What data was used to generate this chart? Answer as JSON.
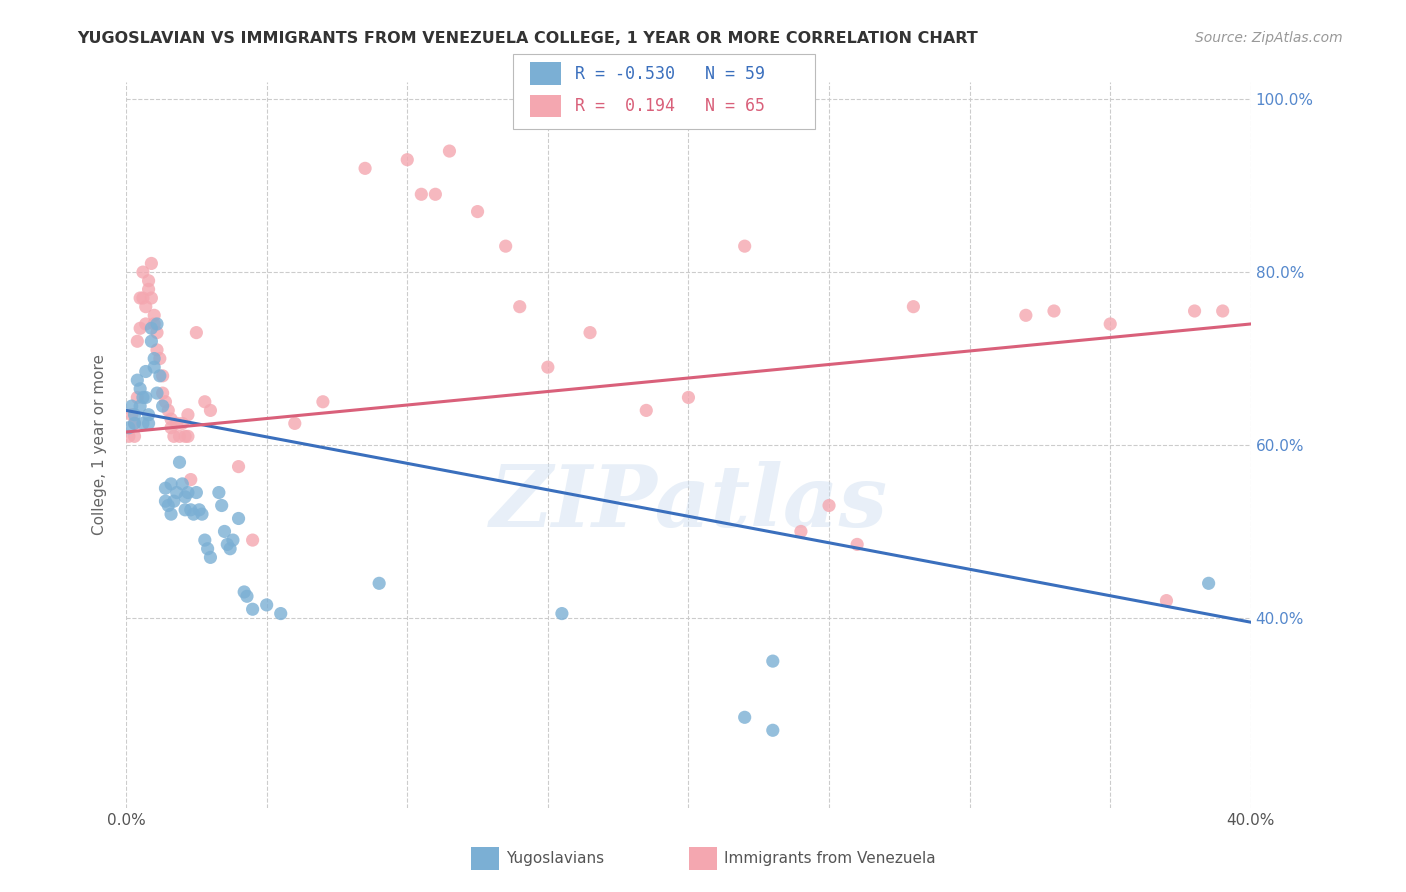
{
  "title": "YUGOSLAVIAN VS IMMIGRANTS FROM VENEZUELA COLLEGE, 1 YEAR OR MORE CORRELATION CHART",
  "source": "Source: ZipAtlas.com",
  "ylabel": "College, 1 year or more",
  "xlim": [
    0.0,
    0.4
  ],
  "ylim": [
    0.18,
    1.02
  ],
  "x_tick_vals": [
    0.0,
    0.05,
    0.1,
    0.15,
    0.2,
    0.25,
    0.3,
    0.35,
    0.4
  ],
  "x_tick_labels": [
    "0.0%",
    "",
    "",
    "",
    "",
    "",
    "",
    "",
    "40.0%"
  ],
  "y_tick_vals": [
    0.4,
    0.6,
    0.8,
    1.0
  ],
  "y_tick_labels": [
    "40.0%",
    "60.0%",
    "80.0%",
    "100.0%"
  ],
  "grid_color": "#cccccc",
  "background_color": "#ffffff",
  "legend_R_blue": "-0.530",
  "legend_N_blue": "59",
  "legend_R_pink": " 0.194",
  "legend_N_pink": "65",
  "blue_color": "#7bafd4",
  "pink_color": "#f4a7b0",
  "blue_line_color": "#3a6fbd",
  "pink_line_color": "#d9607a",
  "watermark_text": "ZIPatlas",
  "blue_points": [
    [
      0.001,
      0.62
    ],
    [
      0.002,
      0.645
    ],
    [
      0.003,
      0.635
    ],
    [
      0.003,
      0.625
    ],
    [
      0.004,
      0.675
    ],
    [
      0.005,
      0.665
    ],
    [
      0.005,
      0.645
    ],
    [
      0.006,
      0.655
    ],
    [
      0.006,
      0.625
    ],
    [
      0.007,
      0.685
    ],
    [
      0.007,
      0.655
    ],
    [
      0.008,
      0.635
    ],
    [
      0.008,
      0.625
    ],
    [
      0.009,
      0.735
    ],
    [
      0.009,
      0.72
    ],
    [
      0.01,
      0.7
    ],
    [
      0.01,
      0.69
    ],
    [
      0.011,
      0.74
    ],
    [
      0.011,
      0.66
    ],
    [
      0.012,
      0.68
    ],
    [
      0.013,
      0.645
    ],
    [
      0.014,
      0.55
    ],
    [
      0.014,
      0.535
    ],
    [
      0.015,
      0.53
    ],
    [
      0.016,
      0.555
    ],
    [
      0.016,
      0.52
    ],
    [
      0.017,
      0.535
    ],
    [
      0.018,
      0.545
    ],
    [
      0.019,
      0.58
    ],
    [
      0.02,
      0.555
    ],
    [
      0.021,
      0.54
    ],
    [
      0.021,
      0.525
    ],
    [
      0.022,
      0.545
    ],
    [
      0.023,
      0.525
    ],
    [
      0.024,
      0.52
    ],
    [
      0.025,
      0.545
    ],
    [
      0.026,
      0.525
    ],
    [
      0.027,
      0.52
    ],
    [
      0.028,
      0.49
    ],
    [
      0.029,
      0.48
    ],
    [
      0.03,
      0.47
    ],
    [
      0.033,
      0.545
    ],
    [
      0.034,
      0.53
    ],
    [
      0.035,
      0.5
    ],
    [
      0.036,
      0.485
    ],
    [
      0.037,
      0.48
    ],
    [
      0.038,
      0.49
    ],
    [
      0.04,
      0.515
    ],
    [
      0.042,
      0.43
    ],
    [
      0.043,
      0.425
    ],
    [
      0.045,
      0.41
    ],
    [
      0.05,
      0.415
    ],
    [
      0.055,
      0.405
    ],
    [
      0.09,
      0.44
    ],
    [
      0.155,
      0.405
    ],
    [
      0.22,
      0.285
    ],
    [
      0.23,
      0.35
    ],
    [
      0.385,
      0.44
    ],
    [
      0.23,
      0.27
    ]
  ],
  "pink_points": [
    [
      0.001,
      0.61
    ],
    [
      0.002,
      0.635
    ],
    [
      0.003,
      0.61
    ],
    [
      0.003,
      0.625
    ],
    [
      0.004,
      0.655
    ],
    [
      0.004,
      0.72
    ],
    [
      0.005,
      0.77
    ],
    [
      0.005,
      0.735
    ],
    [
      0.006,
      0.8
    ],
    [
      0.006,
      0.77
    ],
    [
      0.007,
      0.76
    ],
    [
      0.007,
      0.74
    ],
    [
      0.008,
      0.79
    ],
    [
      0.008,
      0.78
    ],
    [
      0.009,
      0.81
    ],
    [
      0.009,
      0.77
    ],
    [
      0.01,
      0.75
    ],
    [
      0.01,
      0.74
    ],
    [
      0.011,
      0.73
    ],
    [
      0.011,
      0.71
    ],
    [
      0.012,
      0.7
    ],
    [
      0.013,
      0.68
    ],
    [
      0.013,
      0.66
    ],
    [
      0.014,
      0.65
    ],
    [
      0.015,
      0.64
    ],
    [
      0.016,
      0.63
    ],
    [
      0.016,
      0.62
    ],
    [
      0.017,
      0.61
    ],
    [
      0.018,
      0.625
    ],
    [
      0.019,
      0.61
    ],
    [
      0.02,
      0.625
    ],
    [
      0.021,
      0.61
    ],
    [
      0.022,
      0.635
    ],
    [
      0.022,
      0.61
    ],
    [
      0.023,
      0.56
    ],
    [
      0.025,
      0.73
    ],
    [
      0.028,
      0.65
    ],
    [
      0.03,
      0.64
    ],
    [
      0.04,
      0.575
    ],
    [
      0.045,
      0.49
    ],
    [
      0.06,
      0.625
    ],
    [
      0.07,
      0.65
    ],
    [
      0.085,
      0.92
    ],
    [
      0.1,
      0.93
    ],
    [
      0.105,
      0.89
    ],
    [
      0.11,
      0.89
    ],
    [
      0.115,
      0.94
    ],
    [
      0.125,
      0.87
    ],
    [
      0.135,
      0.83
    ],
    [
      0.14,
      0.76
    ],
    [
      0.15,
      0.69
    ],
    [
      0.165,
      0.73
    ],
    [
      0.185,
      0.64
    ],
    [
      0.2,
      0.655
    ],
    [
      0.22,
      0.83
    ],
    [
      0.24,
      0.5
    ],
    [
      0.25,
      0.53
    ],
    [
      0.26,
      0.485
    ],
    [
      0.28,
      0.76
    ],
    [
      0.32,
      0.75
    ],
    [
      0.33,
      0.755
    ],
    [
      0.35,
      0.74
    ],
    [
      0.37,
      0.42
    ],
    [
      0.38,
      0.755
    ],
    [
      0.39,
      0.755
    ]
  ],
  "blue_line_x": [
    0.0,
    0.4
  ],
  "blue_line_y": [
    0.64,
    0.395
  ],
  "pink_line_x": [
    0.0,
    0.4
  ],
  "pink_line_y": [
    0.615,
    0.74
  ]
}
